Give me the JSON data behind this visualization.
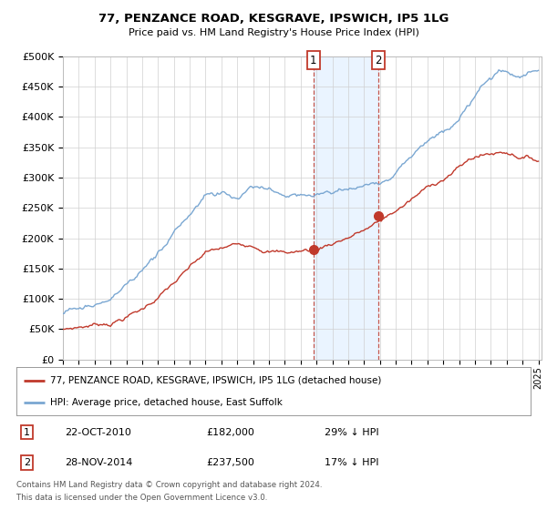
{
  "title": "77, PENZANCE ROAD, KESGRAVE, IPSWICH, IP5 1LG",
  "subtitle": "Price paid vs. HM Land Registry's House Price Index (HPI)",
  "ytick_labels": [
    "£0",
    "£50K",
    "£100K",
    "£150K",
    "£200K",
    "£250K",
    "£300K",
    "£350K",
    "£400K",
    "£450K",
    "£500K"
  ],
  "yticks": [
    0,
    50000,
    100000,
    150000,
    200000,
    250000,
    300000,
    350000,
    400000,
    450000,
    500000
  ],
  "ylim": [
    0,
    500000
  ],
  "hpi_color": "#7aa7d2",
  "price_color": "#c0392b",
  "sale1_date_num": 2010.81,
  "sale1_price": 182000,
  "sale2_date_num": 2014.91,
  "sale2_price": 237500,
  "legend_line1": "77, PENZANCE ROAD, KESGRAVE, IPSWICH, IP5 1LG (detached house)",
  "legend_line2": "HPI: Average price, detached house, East Suffolk",
  "annotation1_date": "22-OCT-2010",
  "annotation1_price": "£182,000",
  "annotation1_hpi": "29% ↓ HPI",
  "annotation2_date": "28-NOV-2014",
  "annotation2_price": "£237,500",
  "annotation2_hpi": "17% ↓ HPI",
  "footnote1": "Contains HM Land Registry data © Crown copyright and database right 2024.",
  "footnote2": "This data is licensed under the Open Government Licence v3.0.",
  "bg_color": "#ffffff",
  "plot_bg_color": "#ffffff",
  "grid_color": "#d0d0d0",
  "shade_color": "#ddeeff"
}
